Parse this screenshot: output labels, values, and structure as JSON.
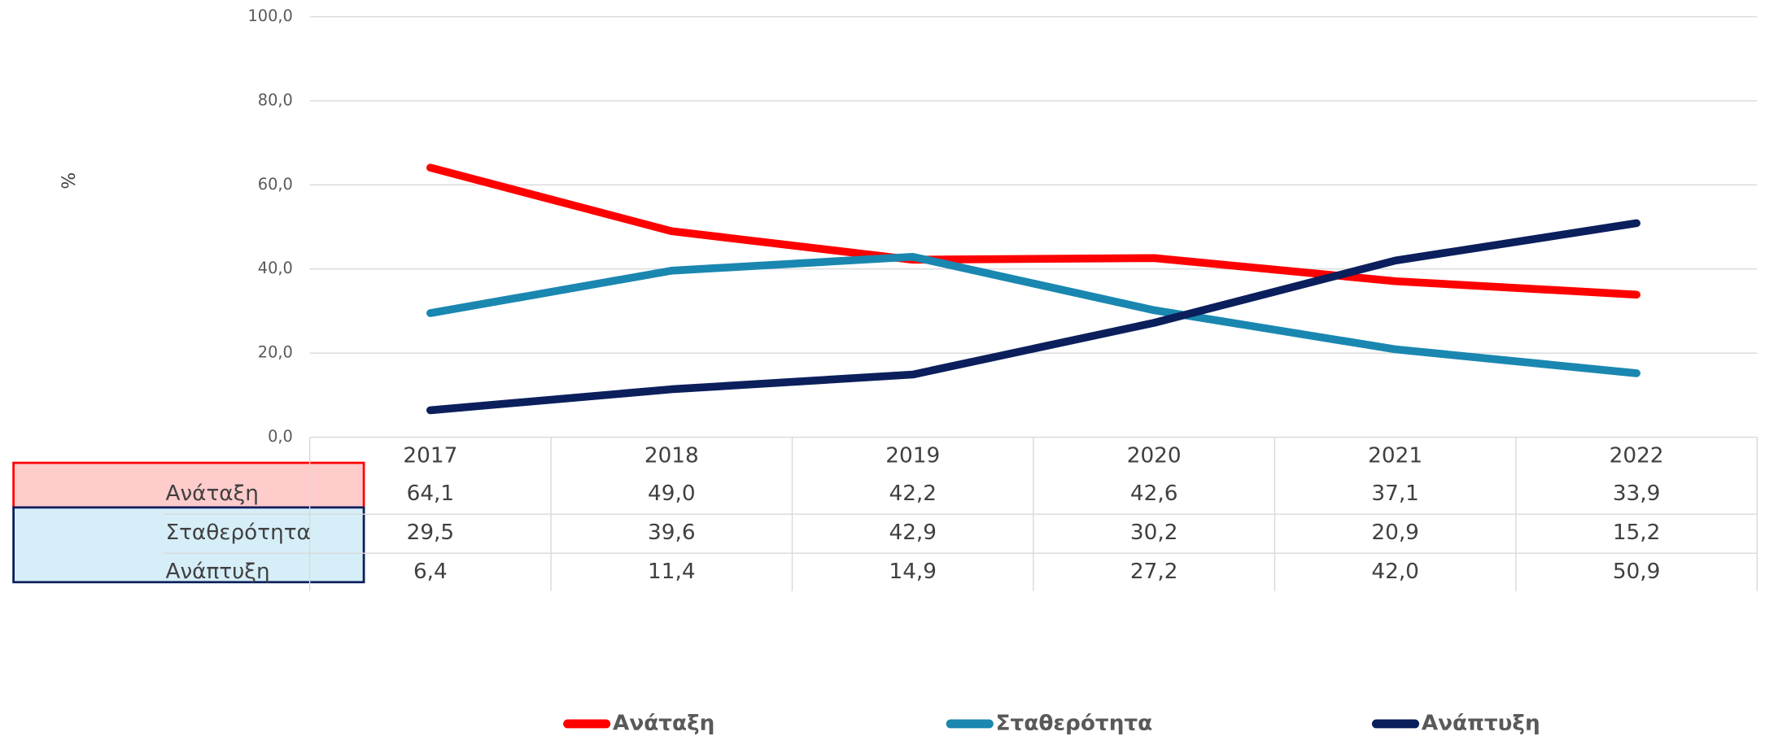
{
  "chart_data": {
    "type": "line",
    "y_label": "%",
    "categories": [
      "2017",
      "2018",
      "2019",
      "2020",
      "2021",
      "2022"
    ],
    "series": [
      {
        "name": "Ανάταξη",
        "color": "#ff0000",
        "values": [
          64.1,
          49.0,
          42.2,
          42.6,
          37.1,
          33.9
        ],
        "value_labels": [
          "64,1",
          "49,0",
          "42,2",
          "42,6",
          "37,1",
          "33,9"
        ]
      },
      {
        "name": "Σταθερότητα",
        "color": "#1a87b0",
        "values": [
          29.5,
          39.6,
          42.9,
          30.2,
          20.9,
          15.2
        ],
        "value_labels": [
          "29,5",
          "39,6",
          "42,9",
          "30,2",
          "20,9",
          "15,2"
        ]
      },
      {
        "name": "Ανάπτυξη",
        "color": "#0b1f5c",
        "values": [
          6.4,
          11.4,
          14.9,
          27.2,
          42.0,
          50.9
        ],
        "value_labels": [
          "6,4",
          "11,4",
          "14,9",
          "27,2",
          "42,0",
          "50,9"
        ]
      }
    ],
    "ylim": [
      0,
      100
    ],
    "yticks": [
      {
        "value": 0,
        "label": "0,0"
      },
      {
        "value": 20,
        "label": "20,0"
      },
      {
        "value": 40,
        "label": "40,0"
      },
      {
        "value": 60,
        "label": "60,0"
      },
      {
        "value": 80,
        "label": "80,0"
      },
      {
        "value": 100,
        "label": "100,0"
      }
    ],
    "grid": true,
    "legend": "bottom"
  }
}
